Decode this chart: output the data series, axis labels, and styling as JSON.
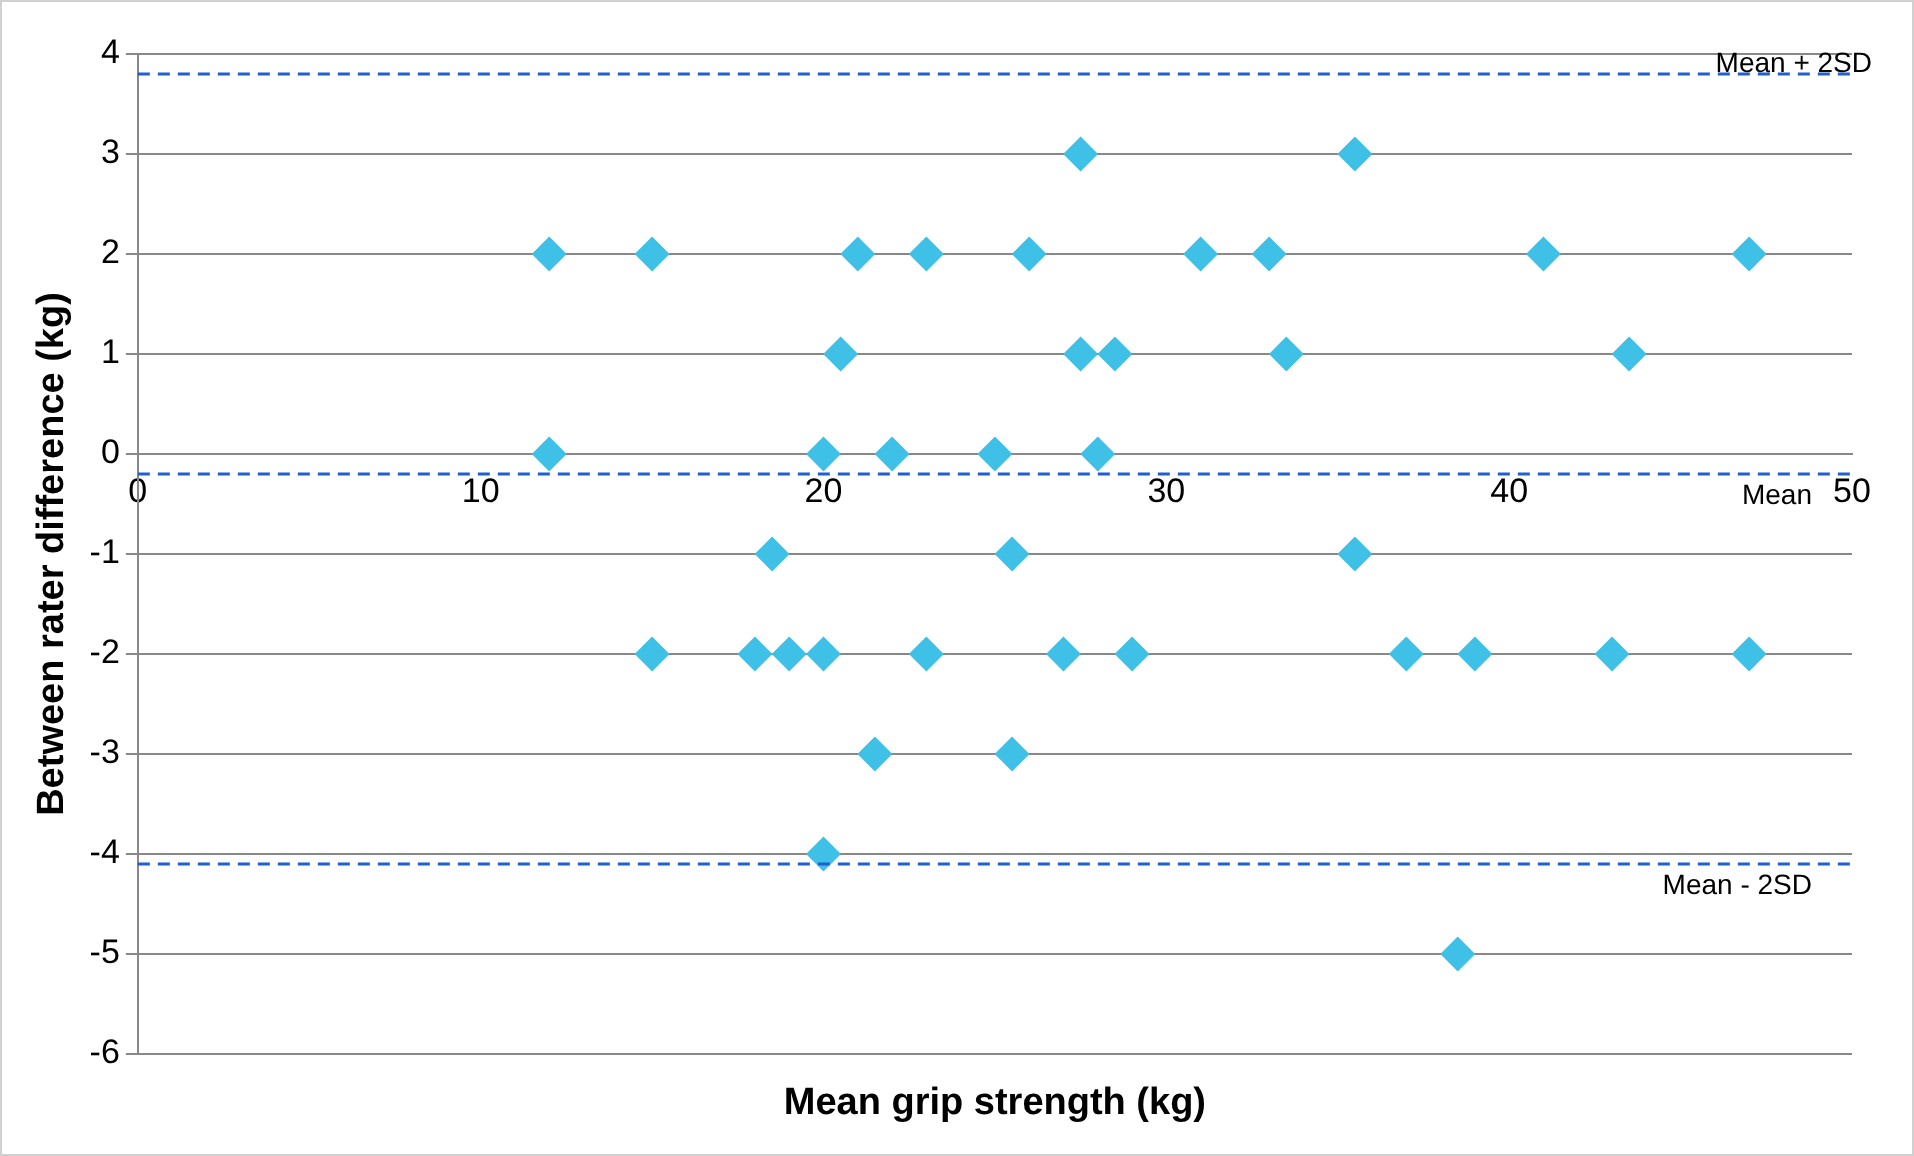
{
  "chart_data": {
    "type": "scatter",
    "xlabel": "Mean grip strength (kg)",
    "ylabel": "Between rater difference (kg)",
    "series": [
      {
        "color": "#3fc0e6",
        "x": [
          27.5,
          35.5,
          12,
          15,
          21,
          23,
          26,
          31,
          33,
          41,
          47,
          20.5,
          27.5,
          28.5,
          33.5,
          43.5,
          12,
          20,
          22,
          25,
          28,
          18.5,
          25.5,
          35.5,
          15,
          18,
          19,
          20,
          23,
          27,
          29,
          37,
          39,
          43,
          47,
          21.5,
          25.5,
          20,
          38.5
        ],
        "values": [
          3,
          3,
          2,
          2,
          2,
          2,
          2,
          2,
          2,
          2,
          2,
          1,
          1,
          1,
          1,
          1,
          0,
          0,
          0,
          0,
          0,
          -1,
          -1,
          -1,
          -2,
          -2,
          -2,
          -2,
          -2,
          -2,
          -2,
          -2,
          -2,
          -2,
          -2,
          -3,
          -3,
          -4,
          -5
        ]
      }
    ],
    "xlim": [
      0,
      50
    ],
    "xticks": [
      0,
      10,
      20,
      30,
      40,
      50
    ],
    "ylim": [
      -6,
      4
    ],
    "yticks": [
      -6,
      -5,
      -4,
      -3,
      -2,
      -1,
      0,
      1,
      2,
      3,
      4
    ],
    "ref_lines": [
      {
        "axis": "y",
        "value": 3.8,
        "label": "Mean + 2SD",
        "color": "#1f5fd6",
        "line_style": "dashed"
      },
      {
        "axis": "y",
        "value": -0.2,
        "label": "Mean",
        "color": "#1f5fd6",
        "line_style": "dashed"
      },
      {
        "axis": "y",
        "value": -4.1,
        "label": "Mean - 2SD",
        "color": "#1f5fd6",
        "line_style": "dashed"
      }
    ],
    "grid": "y",
    "legend": false,
    "marker": "diamond"
  }
}
